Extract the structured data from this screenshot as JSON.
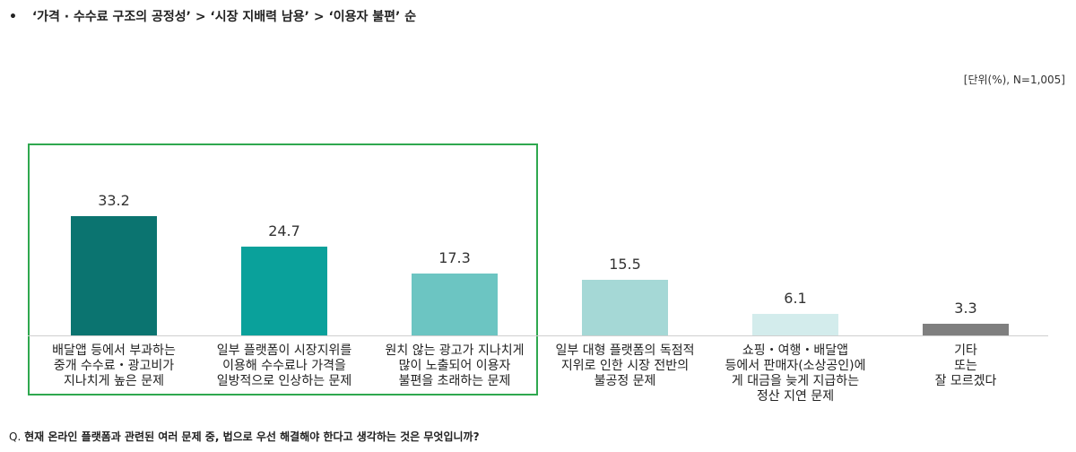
{
  "headline": {
    "bullet": "•",
    "text": "‘가격 · 수수료 구조의 공정성’ > ‘시장 지배력 남용’ > ‘이용자 불편’ 순"
  },
  "unit_note": "[단위(%), N=1,005]",
  "question": {
    "prefix": "Q.",
    "text": "현재 온라인 플랫폼과 관련된 여러 문제 중, 법으로 우선 해결해야 한다고 생각하는 것은 무엇입니까?"
  },
  "chart_data": {
    "type": "bar",
    "categories": [
      "배달앱 등에서 부과하는\n중개 수수료・광고비가\n지나치게 높은 문제",
      "일부 플랫폼이 시장지위를\n이용해 수수료나 가격을\n일방적으로 인상하는 문제",
      "원치 않는 광고가 지나치게\n많이 노출되어 이용자\n불편을 초래하는 문제",
      "일부 대형 플랫폼의 독점적\n지위로 인한 시장 전반의\n불공정 문제",
      "쇼핑・여행・배달앱\n등에서 판매자(소상공인)에\n게 대금을 늦게 지급하는\n정산 지연 문제",
      "기타\n또는\n잘 모르겠다"
    ],
    "values": [
      33.2,
      24.7,
      17.3,
      15.5,
      6.1,
      3.3
    ],
    "value_labels": [
      "33.2",
      "24.7",
      "17.3",
      "15.5",
      "6.1",
      "3.3"
    ],
    "colors": [
      "#0b7470",
      "#0aa19b",
      "#6cc5c2",
      "#a5d8d6",
      "#d3ecec",
      "#7f7f7f"
    ],
    "ylim": [
      0,
      40
    ],
    "highlighted_categories": 3,
    "highlight_color": "#2fa84f"
  }
}
